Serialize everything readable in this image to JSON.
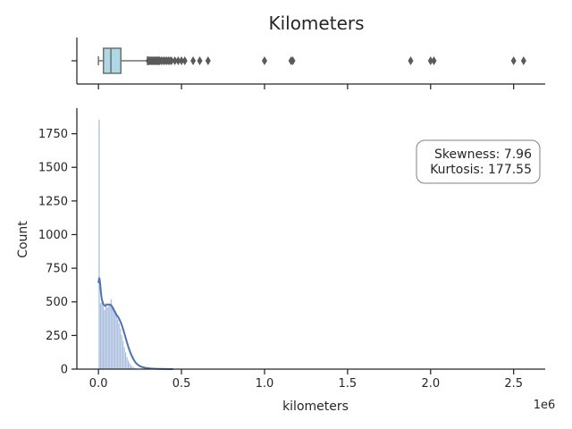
{
  "chart_data": {
    "type": "histogram_with_boxplot",
    "title": "Kilometers",
    "xlabel": "kilometers",
    "ylabel": "Count",
    "x_offset_label": "1e6",
    "xlim": [
      -130000,
      2690000
    ],
    "ylim": [
      0,
      1940
    ],
    "x_ticks": [
      0,
      500000,
      1000000,
      1500000,
      2000000,
      2500000
    ],
    "x_tick_labels": [
      "0.0",
      "0.5",
      "1.0",
      "1.5",
      "2.0",
      "2.5"
    ],
    "y_ticks": [
      0,
      250,
      500,
      750,
      1000,
      1250,
      1500,
      1750
    ],
    "y_tick_labels": [
      "0",
      "250",
      "500",
      "750",
      "1000",
      "1250",
      "1500",
      "1750"
    ],
    "annotation_lines": [
      "Skewness: 7.96",
      "Kurtosis: 177.55"
    ],
    "grid": false,
    "hist_color": "#a7bbdd",
    "kde_color": "#4c72b0",
    "box_color": "#add8e6",
    "box_edge_color": "#707070",
    "histogram": {
      "bin_width": 8000,
      "bin_start": 0,
      "counts": [
        1855,
        490,
        500,
        470,
        440,
        490,
        460,
        470,
        480,
        520,
        470,
        460,
        430,
        400,
        370,
        340,
        300,
        255,
        210,
        165,
        125,
        90,
        65,
        45,
        30,
        20,
        13,
        9,
        6,
        4,
        3,
        2,
        2,
        1,
        1,
        1,
        1
      ]
    },
    "kde": {
      "x": [
        0,
        5000,
        10000,
        15000,
        20000,
        30000,
        40000,
        50000,
        60000,
        70000,
        80000,
        90000,
        100000,
        110000,
        120000,
        130000,
        140000,
        150000,
        160000,
        170000,
        180000,
        190000,
        200000,
        210000,
        220000,
        230000,
        240000,
        250000,
        270000,
        290000,
        310000,
        330000,
        360000,
        400000,
        450000
      ],
      "y": [
        640,
        680,
        640,
        570,
        520,
        480,
        470,
        480,
        480,
        480,
        470,
        445,
        425,
        400,
        385,
        360,
        330,
        290,
        250,
        205,
        165,
        130,
        100,
        75,
        55,
        40,
        30,
        22,
        13,
        8,
        5,
        3,
        2,
        1,
        0
      ]
    },
    "boxplot": {
      "whisker_low": 0,
      "q1": 30000,
      "median": 75000,
      "q3": 135000,
      "whisker_high": 295000,
      "outliers": [
        300000,
        305000,
        310000,
        315000,
        320000,
        325000,
        330000,
        335000,
        340000,
        345000,
        350000,
        355000,
        360000,
        365000,
        370000,
        380000,
        390000,
        400000,
        410000,
        420000,
        430000,
        440000,
        460000,
        480000,
        500000,
        520000,
        570000,
        610000,
        660000,
        1000000,
        1160000,
        1170000,
        1880000,
        2000000,
        2020000,
        2500000,
        2560000
      ]
    }
  }
}
